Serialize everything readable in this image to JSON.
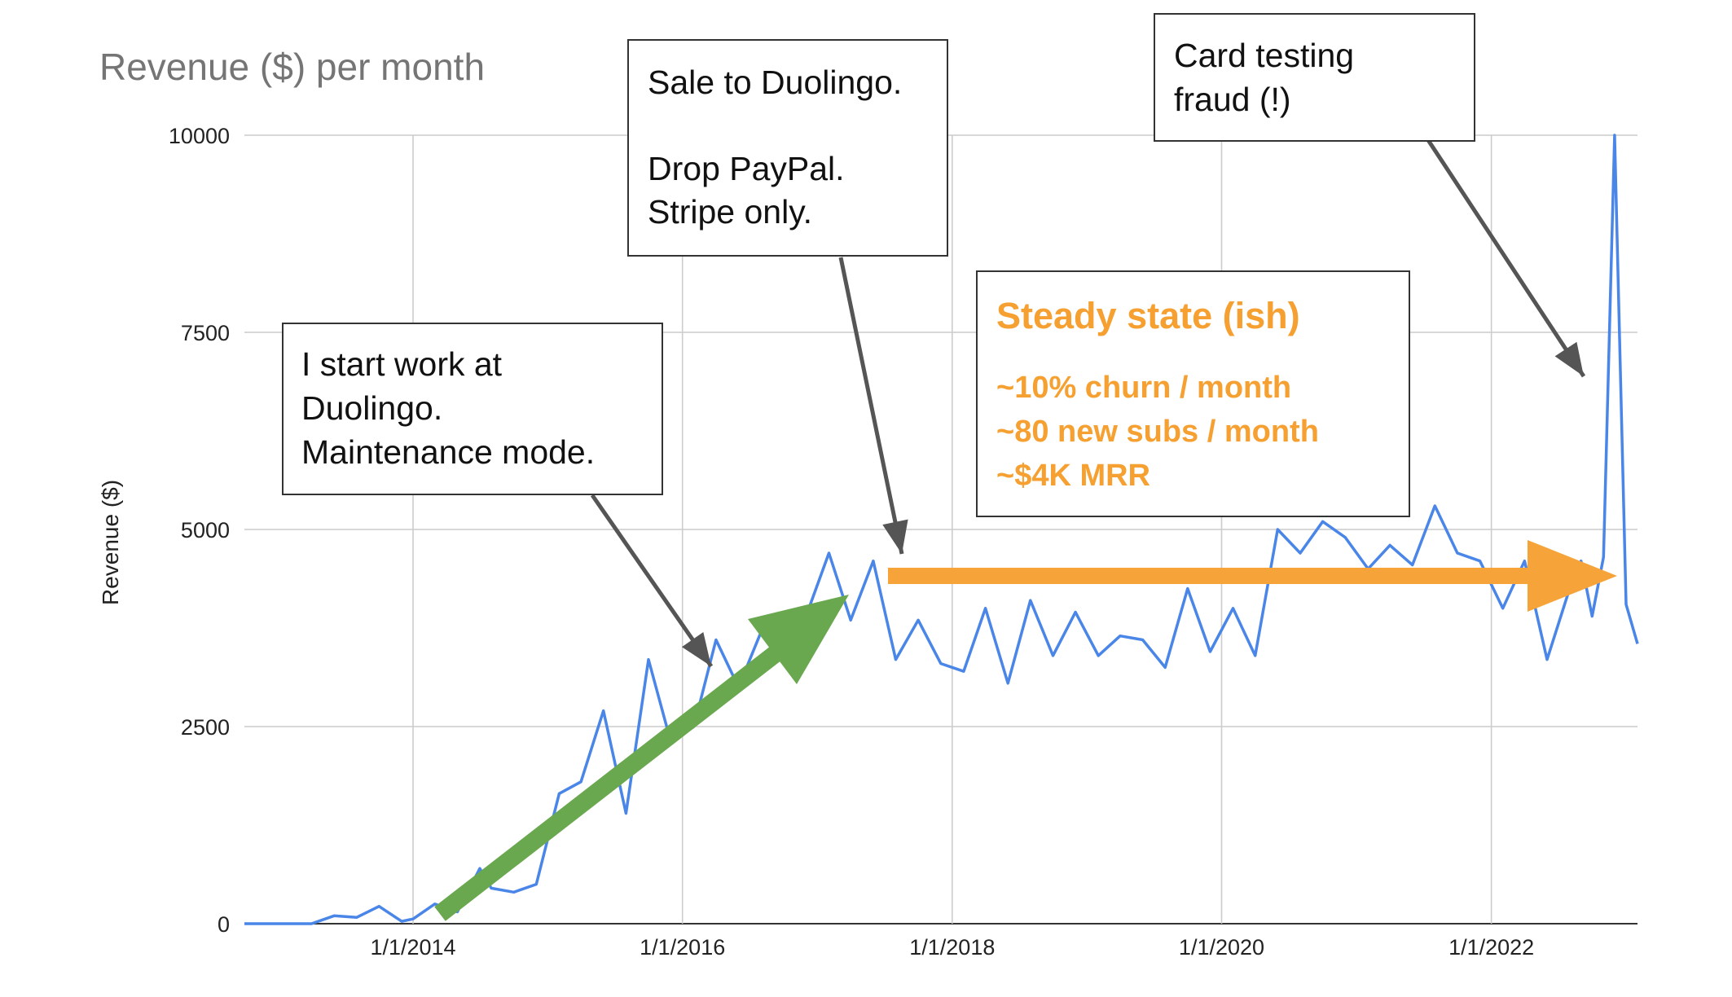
{
  "chart_data": {
    "type": "line",
    "title": "Revenue ($) per month",
    "xlabel": "",
    "ylabel": "Revenue ($)",
    "ylim": [
      0,
      10000
    ],
    "yticks": [
      0,
      2500,
      5000,
      7500,
      10000
    ],
    "xticks": [
      "1/1/2014",
      "1/1/2016",
      "1/1/2018",
      "1/1/2020",
      "1/1/2022"
    ],
    "grid": true,
    "line_color": "#4a86e8",
    "series": [
      {
        "x": [
          "2012-10",
          "2013-01",
          "2013-04",
          "2013-06",
          "2013-08",
          "2013-10",
          "2013-12",
          "2014-01",
          "2014-03",
          "2014-05",
          "2014-07",
          "2014-08",
          "2014-10",
          "2014-12",
          "2015-02",
          "2015-04",
          "2015-06",
          "2015-08",
          "2015-10",
          "2015-12",
          "2016-02",
          "2016-04",
          "2016-06",
          "2016-08",
          "2016-10",
          "2016-12",
          "2017-02",
          "2017-04",
          "2017-06",
          "2017-08",
          "2017-10",
          "2017-12",
          "2018-02",
          "2018-04",
          "2018-06",
          "2018-08",
          "2018-10",
          "2018-12",
          "2019-02",
          "2019-04",
          "2019-06",
          "2019-08",
          "2019-10",
          "2019-12",
          "2020-02",
          "2020-04",
          "2020-06",
          "2020-08",
          "2020-10",
          "2020-12",
          "2021-02",
          "2021-04",
          "2021-06",
          "2021-08",
          "2021-10",
          "2021-12",
          "2022-02",
          "2022-04",
          "2022-06",
          "2022-08",
          "2022-09",
          "2022-10",
          "2022-11",
          "2022-12",
          "2023-01",
          "2023-02"
        ],
        "y": [
          0,
          0,
          0,
          100,
          80,
          220,
          30,
          60,
          250,
          150,
          700,
          450,
          400,
          500,
          1650,
          1800,
          2700,
          1400,
          3350,
          2300,
          2500,
          3600,
          3000,
          3700,
          3500,
          3900,
          4700,
          3850,
          4600,
          3350,
          3850,
          3300,
          3200,
          4000,
          3050,
          4100,
          3400,
          3950,
          3400,
          3650,
          3600,
          3250,
          4250,
          3450,
          4000,
          3400,
          5000,
          4700,
          5100,
          4900,
          4500,
          4800,
          4550,
          5300,
          4700,
          4600,
          4000,
          4600,
          3350,
          4250,
          4600,
          3900,
          4650,
          10000,
          4050,
          3550
        ]
      }
    ],
    "annotations": [
      {
        "id": "duolingo_start",
        "lines": [
          "I start work at",
          "Duolingo.",
          "Maintenance mode."
        ]
      },
      {
        "id": "sale",
        "lines": [
          "Sale to Duolingo.",
          "",
          "Drop PayPal.",
          "Stripe only."
        ]
      },
      {
        "id": "fraud",
        "lines": [
          "Card testing",
          "fraud (!)"
        ]
      },
      {
        "id": "steady",
        "heading": "Steady state (ish)",
        "lines": [
          "~10% churn / month",
          "~80 new subs / month",
          "~$4K MRR"
        ]
      }
    ],
    "colors": {
      "growth_arrow": "#6aa84f",
      "steady_arrow": "#f6a43a",
      "pointer_arrow": "#555555",
      "highlight_text": "#f5a031"
    }
  }
}
